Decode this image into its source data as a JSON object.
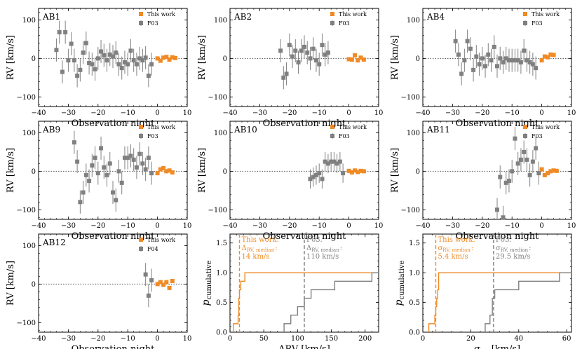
{
  "colors": {
    "this_work": "#f08a24",
    "lit": "#808080",
    "axis": "#000000",
    "zero_line": "#555555"
  },
  "chart_data": [
    {
      "id": "AB1",
      "type": "errorbar-scatter",
      "label": "AB1",
      "xlabel": "Observation night",
      "ylabel": "RV [km/s]",
      "xlim": [
        -40,
        10
      ],
      "ylim": [
        -125,
        130
      ],
      "xticks": [
        -40,
        -30,
        -20,
        -10,
        0,
        10
      ],
      "yticks": [
        -100,
        0,
        100
      ],
      "legend": {
        "position": "top-right",
        "entries": [
          "This work",
          "F03"
        ]
      },
      "series": [
        {
          "name": "This work",
          "color_key": "this_work",
          "x": [
            0,
            1,
            2,
            3,
            4,
            5,
            6
          ],
          "y": [
            0,
            -6,
            2,
            4,
            -3,
            3,
            1
          ],
          "err": [
            5,
            5,
            5,
            5,
            5,
            5,
            5
          ]
        },
        {
          "name": "F03",
          "color_key": "lit",
          "x": [
            -34,
            -33,
            -32,
            -31,
            -30,
            -29,
            -28,
            -27,
            -26,
            -25,
            -24,
            -23,
            -22,
            -21,
            -20,
            -19,
            -18,
            -17,
            -16,
            -15,
            -14,
            -13,
            -12,
            -11,
            -10,
            -9,
            -8,
            -7,
            -6,
            -5,
            -4,
            -3,
            -2
          ],
          "y": [
            22,
            68,
            -35,
            68,
            -5,
            38,
            -5,
            -45,
            -30,
            15,
            40,
            -12,
            -15,
            -28,
            0,
            18,
            8,
            -5,
            10,
            5,
            15,
            -15,
            -25,
            -10,
            -15,
            20,
            -5,
            -15,
            0,
            -5,
            2,
            -45,
            -15
          ],
          "err": [
            30,
            30,
            30,
            30,
            30,
            30,
            30,
            30,
            30,
            30,
            30,
            30,
            30,
            30,
            30,
            30,
            30,
            30,
            30,
            30,
            30,
            30,
            30,
            30,
            30,
            30,
            30,
            30,
            30,
            30,
            30,
            30,
            30
          ]
        }
      ]
    },
    {
      "id": "AB2",
      "type": "errorbar-scatter",
      "label": "AB2",
      "xlabel": "Observation night",
      "ylabel": "RV [km/s]",
      "xlim": [
        -40,
        10
      ],
      "ylim": [
        -125,
        130
      ],
      "xticks": [
        -40,
        -30,
        -20,
        -10,
        0,
        10
      ],
      "yticks": [
        -100,
        0,
        100
      ],
      "legend": {
        "position": "top-right",
        "entries": [
          "This work",
          "F03"
        ]
      },
      "series": [
        {
          "name": "This work",
          "color_key": "this_work",
          "x": [
            0,
            1,
            2,
            3,
            4,
            5
          ],
          "y": [
            -2,
            -3,
            8,
            -5,
            2,
            -3
          ],
          "err": [
            5,
            5,
            5,
            5,
            5,
            5
          ]
        },
        {
          "name": "F03",
          "color_key": "lit",
          "x": [
            -23,
            -22,
            -21,
            -20,
            -19,
            -18,
            -17,
            -16,
            -15,
            -14,
            -13,
            -12,
            -11,
            -10,
            -9,
            -8,
            -7
          ],
          "y": [
            20,
            -50,
            -40,
            35,
            5,
            20,
            -10,
            20,
            30,
            15,
            0,
            25,
            -5,
            -15,
            35,
            10,
            15
          ],
          "err": [
            30,
            30,
            30,
            30,
            30,
            30,
            30,
            30,
            30,
            30,
            30,
            30,
            30,
            30,
            30,
            30,
            30
          ]
        }
      ]
    },
    {
      "id": "AB4",
      "type": "errorbar-scatter",
      "label": "AB4",
      "xlabel": "Observation night",
      "ylabel": "RV [km/s]",
      "xlim": [
        -40,
        10
      ],
      "ylim": [
        -125,
        130
      ],
      "xticks": [
        -40,
        -30,
        -20,
        -10,
        0,
        10
      ],
      "yticks": [
        -100,
        0,
        100
      ],
      "legend": {
        "position": "top-right",
        "entries": [
          "This work",
          "F03"
        ]
      },
      "series": [
        {
          "name": "This work",
          "color_key": "this_work",
          "x": [
            0,
            1,
            2,
            3,
            4
          ],
          "y": [
            -5,
            5,
            3,
            10,
            9
          ],
          "err": [
            5,
            5,
            5,
            5,
            5
          ]
        },
        {
          "name": "F03",
          "color_key": "lit",
          "x": [
            -29,
            -28,
            -27,
            -26,
            -25,
            -24,
            -23,
            -22,
            -21,
            -20,
            -19,
            -18,
            -17,
            -16,
            -15,
            -14,
            -13,
            -12,
            -11,
            -10,
            -9,
            -8,
            -7,
            -6,
            -5,
            -4,
            -3,
            -2
          ],
          "y": [
            45,
            10,
            -40,
            -5,
            45,
            25,
            -30,
            5,
            -15,
            0,
            -20,
            10,
            -5,
            30,
            -20,
            0,
            -10,
            0,
            -5,
            -5,
            -5,
            -5,
            -10,
            20,
            -5,
            -10,
            -15,
            -25
          ],
          "err": [
            30,
            30,
            30,
            30,
            30,
            30,
            30,
            30,
            30,
            30,
            30,
            30,
            30,
            30,
            30,
            30,
            30,
            30,
            30,
            30,
            30,
            30,
            30,
            30,
            30,
            30,
            30,
            30
          ]
        }
      ]
    },
    {
      "id": "AB9",
      "type": "errorbar-scatter",
      "label": "AB9",
      "xlabel": "Observation night",
      "ylabel": "RV [km/s]",
      "xlim": [
        -40,
        10
      ],
      "ylim": [
        -125,
        130
      ],
      "xticks": [
        -40,
        -30,
        -20,
        -10,
        0,
        10
      ],
      "yticks": [
        -100,
        0,
        100
      ],
      "legend": {
        "position": "top-right",
        "entries": [
          "This work",
          "F03"
        ]
      },
      "series": [
        {
          "name": "This work",
          "color_key": "this_work",
          "x": [
            0,
            1,
            2,
            3,
            4,
            5
          ],
          "y": [
            -5,
            5,
            8,
            0,
            2,
            -3
          ],
          "err": [
            5,
            5,
            5,
            5,
            5,
            5
          ]
        },
        {
          "name": "F03",
          "color_key": "lit",
          "x": [
            -28,
            -27,
            -26,
            -25,
            -24,
            -23,
            -22,
            -21,
            -20,
            -19,
            -18,
            -17,
            -16,
            -15,
            -14,
            -13,
            -12,
            -11,
            -10,
            -9,
            -8,
            -7,
            -6,
            -5,
            -4,
            -3,
            -2
          ],
          "y": [
            75,
            25,
            -80,
            -55,
            -10,
            -25,
            15,
            35,
            -5,
            60,
            10,
            -10,
            20,
            -55,
            -75,
            0,
            -30,
            35,
            35,
            40,
            30,
            10,
            45,
            20,
            5,
            35,
            -5
          ],
          "err": [
            30,
            30,
            30,
            30,
            30,
            30,
            30,
            30,
            30,
            30,
            30,
            30,
            30,
            30,
            30,
            30,
            30,
            30,
            30,
            30,
            30,
            30,
            30,
            30,
            30,
            30,
            30
          ]
        }
      ]
    },
    {
      "id": "AB10",
      "type": "errorbar-scatter",
      "label": "AB10",
      "xlabel": "Observation night",
      "ylabel": "RV [km/s]",
      "xlim": [
        -40,
        10
      ],
      "ylim": [
        -125,
        130
      ],
      "xticks": [
        -40,
        -30,
        -20,
        -10,
        0,
        10
      ],
      "yticks": [
        -100,
        0,
        100
      ],
      "legend": {
        "position": "top-right",
        "entries": [
          "This work",
          "F03"
        ]
      },
      "series": [
        {
          "name": "This work",
          "color_key": "this_work",
          "x": [
            0,
            1,
            2,
            3,
            4,
            5
          ],
          "y": [
            1,
            -3,
            2,
            -2,
            1,
            0
          ],
          "err": [
            5,
            5,
            5,
            5,
            5,
            5
          ]
        },
        {
          "name": "F03",
          "color_key": "lit",
          "x": [
            -13,
            -12,
            -11,
            -10,
            -9,
            -8,
            -7,
            -6,
            -5,
            -4,
            -3,
            -2
          ],
          "y": [
            -20,
            -15,
            -10,
            -5,
            -20,
            25,
            20,
            25,
            25,
            20,
            25,
            -5
          ],
          "err": [
            25,
            25,
            25,
            25,
            25,
            25,
            25,
            25,
            25,
            25,
            25,
            25
          ]
        }
      ]
    },
    {
      "id": "AB11",
      "type": "errorbar-scatter",
      "label": "AB11",
      "xlabel": "Observation night",
      "ylabel": "RV [km/s]",
      "xlim": [
        -40,
        10
      ],
      "ylim": [
        -125,
        130
      ],
      "xticks": [
        -40,
        -30,
        -20,
        -10,
        0,
        10
      ],
      "yticks": [
        -100,
        0,
        100
      ],
      "legend": {
        "position": "top-right",
        "entries": [
          "This work",
          "F03"
        ]
      },
      "series": [
        {
          "name": "This work",
          "color_key": "this_work",
          "x": [
            0,
            1,
            2,
            3,
            4,
            5
          ],
          "y": [
            5,
            -10,
            -5,
            0,
            2,
            1
          ],
          "err": [
            5,
            5,
            5,
            5,
            5,
            5
          ]
        },
        {
          "name": "F03",
          "color_key": "lit",
          "x": [
            -15,
            -14,
            -13,
            -12,
            -11,
            -10,
            -9,
            -8,
            -7,
            -6,
            -5,
            -4,
            -3,
            -2,
            -1
          ],
          "y": [
            -100,
            -15,
            -120,
            -30,
            -25,
            0,
            85,
            20,
            30,
            50,
            30,
            -10,
            25,
            60,
            -5
          ],
          "err": [
            30,
            30,
            30,
            30,
            30,
            30,
            30,
            30,
            30,
            30,
            30,
            30,
            30,
            30,
            30
          ]
        }
      ]
    },
    {
      "id": "AB12",
      "type": "errorbar-scatter",
      "label": "AB12",
      "xlabel": "Observation night",
      "ylabel": "RV [km/s]",
      "xlim": [
        -40,
        10
      ],
      "ylim": [
        -125,
        130
      ],
      "xticks": [
        -40,
        -30,
        -20,
        -10,
        0,
        10
      ],
      "yticks": [
        -100,
        0,
        100
      ],
      "legend": {
        "position": "top-right",
        "entries": [
          "This work",
          "F04"
        ]
      },
      "series": [
        {
          "name": "This work",
          "color_key": "this_work",
          "x": [
            0,
            1,
            2,
            3,
            4,
            5
          ],
          "y": [
            0,
            5,
            -2,
            5,
            -10,
            8
          ],
          "err": [
            5,
            5,
            5,
            5,
            5,
            5
          ]
        },
        {
          "name": "F04",
          "color_key": "lit",
          "x": [
            -4,
            -3,
            -2
          ],
          "y": [
            25,
            -30,
            10
          ],
          "err": [
            30,
            30,
            30
          ]
        }
      ]
    },
    {
      "id": "cdf_drv",
      "type": "step-cdf",
      "xlabel": "ΔRV [km/s]",
      "ylabel_main": "p",
      "ylabel_sub": "cumulative",
      "xlim": [
        0,
        220
      ],
      "ylim": [
        0,
        1.65
      ],
      "xticks": [
        0,
        50,
        100,
        150,
        200
      ],
      "yticks": [
        0.0,
        0.5,
        1.0,
        1.5
      ],
      "ytick_labels": [
        "0.0",
        "0.5",
        "1.0",
        "1.5"
      ],
      "series": [
        {
          "name": "This work",
          "color_key": "this_work",
          "x": [
            5,
            12,
            13,
            14,
            16,
            22,
            220
          ],
          "y": [
            0.143,
            0.286,
            0.571,
            0.714,
            0.857,
            1.0,
            1.0
          ]
        },
        {
          "name": "F03",
          "color_key": "lit",
          "x": [
            80,
            90,
            100,
            110,
            120,
            155,
            210,
            220
          ],
          "y": [
            0.143,
            0.286,
            0.429,
            0.571,
            0.714,
            0.857,
            1.0,
            1.0
          ]
        }
      ],
      "median_lines": [
        {
          "color_key": "this_work",
          "x": 14,
          "text_lines": [
            "This work.",
            "Δ",
            "RV, median",
            ":",
            "14 km/s"
          ]
        },
        {
          "color_key": "lit",
          "x": 110,
          "text_lines": [
            "F03.",
            "Δ",
            "RV, median",
            ":",
            "110 km/s"
          ]
        }
      ]
    },
    {
      "id": "cdf_sigma",
      "type": "step-cdf",
      "xlabel": "σ",
      "xlabel_sub": "RV",
      "xlabel_unit": "[km/s]",
      "ylabel_main": "p",
      "ylabel_sub": "cumulative",
      "xlim": [
        0,
        62
      ],
      "ylim": [
        0,
        1.65
      ],
      "xticks": [
        0,
        20,
        40,
        60
      ],
      "yticks": [
        0.0,
        0.5,
        1.0,
        1.5
      ],
      "ytick_labels": [
        "0.0",
        "0.5",
        "1.0",
        "1.5"
      ],
      "series": [
        {
          "name": "This work",
          "color_key": "this_work",
          "x": [
            2.5,
            5,
            5.4,
            5.8,
            6.2,
            6.6,
            62
          ],
          "y": [
            0.143,
            0.286,
            0.429,
            0.571,
            0.714,
            1.0,
            1.0
          ]
        },
        {
          "name": "F03",
          "color_key": "lit",
          "x": [
            26,
            28,
            29,
            30,
            40,
            57,
            62
          ],
          "y": [
            0.143,
            0.286,
            0.571,
            0.714,
            0.857,
            1.0,
            1.0
          ]
        }
      ],
      "median_lines": [
        {
          "color_key": "this_work",
          "x": 5.4,
          "text_lines": [
            "This work.",
            "σ",
            "RV, median",
            ":",
            "5.4 km/s"
          ]
        },
        {
          "color_key": "lit",
          "x": 29.5,
          "text_lines": [
            "F03.",
            "σ",
            "RV, median",
            ":",
            "29.5 km/s"
          ]
        }
      ]
    }
  ]
}
